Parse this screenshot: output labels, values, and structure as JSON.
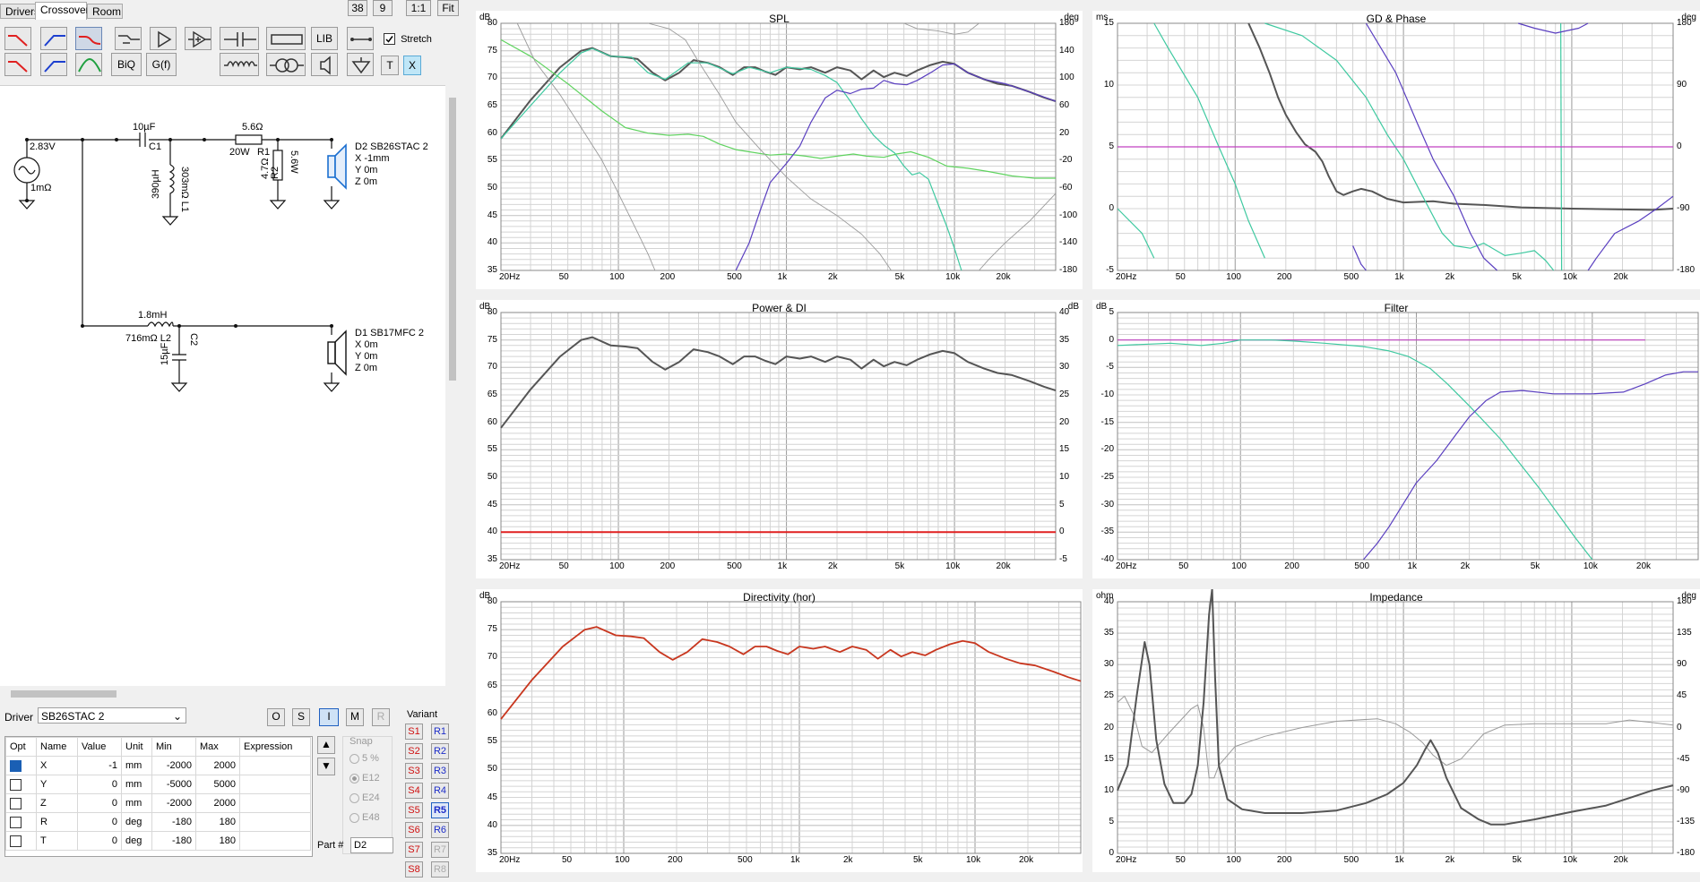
{
  "tabs": [
    "Drivers",
    "Crossover",
    "Room"
  ],
  "toolbar": {
    "num1": "38",
    "num2": "9",
    "ratio": "1:1",
    "fit": "Fit",
    "lib": "LIB",
    "biq": "BiQ",
    "gf": "G(f)",
    "stretch": "Stretch",
    "t": "T",
    "x": "X"
  },
  "schematic": {
    "voltage": "2.83V",
    "source_r": "1mΩ",
    "c1_value": "10µF",
    "c1_name": "C1",
    "l1_value": "390µH",
    "l1_name": "303mΩ L1",
    "r1_value": "5.6Ω",
    "r1_name": "R1",
    "r1_power": "20W",
    "r2_value": "4.7Ω",
    "r2_name": "R2",
    "r2_power": "5.6W",
    "d2_name": "D2 SB26STAC 2",
    "d2_x": "X -1mm",
    "d2_y": "Y 0m",
    "d2_z": "Z 0m",
    "l2_value": "1.8mH",
    "l2_name": "716mΩ L2",
    "c2_value": "15µF",
    "c2_name": "C2",
    "d1_name": "D1 SB17MFC 2",
    "d1_x": "X 0m",
    "d1_y": "Y 0m",
    "d1_z": "Z 0m"
  },
  "driver": {
    "label": "Driver",
    "selected": "SB26STAC 2",
    "mode_buttons": [
      "O",
      "S",
      "I",
      "M",
      "R"
    ]
  },
  "params": {
    "headers": [
      "Opt",
      "Name",
      "Value",
      "Unit",
      "Min",
      "Max",
      "Expression"
    ],
    "rows": [
      {
        "name": "X",
        "value": "-1",
        "unit": "mm",
        "min": "-2000",
        "max": "2000"
      },
      {
        "name": "Y",
        "value": "0",
        "unit": "mm",
        "min": "-5000",
        "max": "5000"
      },
      {
        "name": "Z",
        "value": "0",
        "unit": "mm",
        "min": "-2000",
        "max": "2000"
      },
      {
        "name": "R",
        "value": "0",
        "unit": "deg",
        "min": "-180",
        "max": "180"
      },
      {
        "name": "T",
        "value": "0",
        "unit": "deg",
        "min": "-180",
        "max": "180"
      }
    ]
  },
  "snap": {
    "label": "Snap",
    "options": [
      "5 %",
      "E12",
      "E24",
      "E48"
    ]
  },
  "part": {
    "label": "Part #",
    "value": "D2"
  },
  "variant": {
    "label": "Variant",
    "s": [
      "S1",
      "S2",
      "S3",
      "S4",
      "S5",
      "S6",
      "S7",
      "S8"
    ],
    "r": [
      "R1",
      "R2",
      "R3",
      "R4",
      "R5",
      "R6",
      "R7",
      "R8"
    ]
  },
  "xticks": [
    "20Hz",
    "50",
    "100",
    "200",
    "500",
    "1k",
    "2k",
    "5k",
    "10k",
    "20k"
  ],
  "charts": {
    "spl": {
      "title": "SPL",
      "left_unit": "dB",
      "right_unit": "deg",
      "left_ticks": [
        "80",
        "75",
        "70",
        "65",
        "60",
        "55",
        "50",
        "45",
        "40",
        "35"
      ],
      "right_ticks": [
        "180",
        "140",
        "100",
        "60",
        "20",
        "-20",
        "-60",
        "-100",
        "-140",
        "-180"
      ]
    },
    "gd": {
      "title": "GD & Phase",
      "left_unit": "ms",
      "right_unit": "deg",
      "left_ticks": [
        "15",
        "10",
        "5",
        "0",
        "-5"
      ],
      "right_ticks": [
        "180",
        "90",
        "0",
        "-90",
        "-180"
      ]
    },
    "power": {
      "title": "Power & DI",
      "left_unit": "dB",
      "right_unit": "dB",
      "left_ticks": [
        "80",
        "75",
        "70",
        "65",
        "60",
        "55",
        "50",
        "45",
        "40",
        "35"
      ],
      "right_ticks": [
        "40",
        "35",
        "30",
        "25",
        "20",
        "15",
        "10",
        "5",
        "0",
        "-5"
      ]
    },
    "filter": {
      "title": "Filter",
      "left_unit": "dB",
      "left_ticks": [
        "5",
        "0",
        "-5",
        "-10",
        "-15",
        "-20",
        "-25",
        "-30",
        "-35",
        "-40"
      ]
    },
    "directivity": {
      "title": "Directivity (hor)",
      "left_unit": "dB",
      "left_ticks": [
        "80",
        "75",
        "70",
        "65",
        "60",
        "55",
        "50",
        "45",
        "40",
        "35"
      ]
    },
    "impedance": {
      "title": "Impedance",
      "left_unit": "ohm",
      "right_unit": "deg",
      "left_ticks": [
        "40",
        "35",
        "30",
        "25",
        "20",
        "15",
        "10",
        "5",
        "0"
      ],
      "right_ticks": [
        "180",
        "135",
        "90",
        "45",
        "0",
        "-45",
        "-90",
        "-135",
        "-180"
      ]
    }
  },
  "colors": {
    "dark": "#555555",
    "green_light": "#5fd35f",
    "teal": "#3ec9a0",
    "purple": "#5a3fc0",
    "grey": "#9a9a9a",
    "red": "#e02020",
    "orange_red": "#c8361e",
    "magenta": "#c040c0"
  }
}
